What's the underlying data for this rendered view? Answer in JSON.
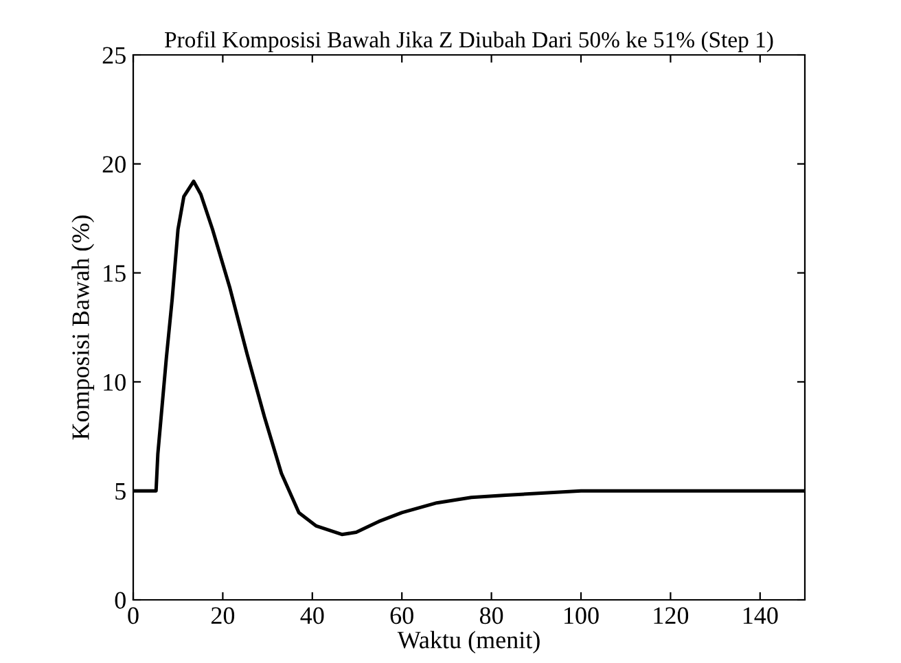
{
  "chart_data": {
    "type": "line",
    "title": "Profil Komposisi Bawah Jika Z Diubah Dari 50% ke 51% (Step 1)",
    "xlabel": "Waktu (menit)",
    "ylabel": "Komposisi Bawah (%)",
    "x": [
      0,
      5.1,
      5.5,
      7.4,
      8.7,
      10,
      11.3,
      13.5,
      15.1,
      17.7,
      21.6,
      25.4,
      29.3,
      33.1,
      37,
      40.8,
      46.6,
      49.8,
      54.9,
      60,
      67.8,
      75.5,
      83.2,
      100,
      150
    ],
    "series": [
      {
        "color": "#000000",
        "values": [
          5,
          5,
          6.7,
          11.1,
          13.8,
          17.0,
          18.5,
          19.2,
          18.6,
          17.0,
          14.3,
          11.3,
          8.4,
          5.8,
          4.0,
          3.4,
          3.0,
          3.1,
          3.6,
          4.0,
          4.45,
          4.7,
          4.8,
          5.0,
          5.0
        ]
      }
    ],
    "xlim": [
      0,
      150
    ],
    "xticks": [
      0,
      20,
      40,
      60,
      80,
      100,
      120,
      140
    ],
    "ylim": [
      0,
      25
    ],
    "yticks": [
      0,
      5,
      10,
      15,
      20,
      25
    ],
    "grid": false,
    "legend": false
  }
}
